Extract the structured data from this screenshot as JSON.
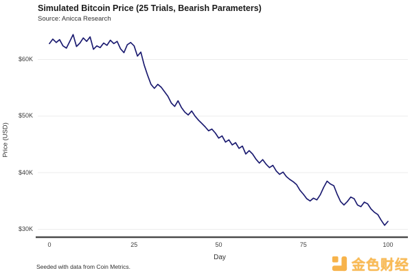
{
  "header": {
    "title": "Simulated Bitcoin Price (25 Trials, Bearish Parameters)",
    "source": "Source: Anicca Research"
  },
  "footer": {
    "note": "Seeded with data from Coin Metrics.",
    "watermark": "金色财经"
  },
  "chart_data": {
    "type": "line",
    "title": "Simulated Bitcoin Price (25 Trials, Bearish Parameters)",
    "subtitle": "Source: Anicca Research",
    "xlabel": "Day",
    "ylabel": "Price (USD)",
    "x_ticks": [
      0,
      25,
      50,
      75,
      100
    ],
    "y_ticks": [
      {
        "value": 30,
        "label": "$30K"
      },
      {
        "value": 40,
        "label": "$40K"
      },
      {
        "value": 50,
        "label": "$50K"
      },
      {
        "value": 60,
        "label": "$60K"
      }
    ],
    "xlim": [
      0,
      100
    ],
    "ylim_usd_thousands": [
      30,
      66
    ],
    "grid": "horizontal",
    "legend": "none",
    "line_color": "#1b1b70",
    "series": [
      {
        "name": "Simulated BTC price (bearish scenario)",
        "x_start_day": 0,
        "x_step_days": 1,
        "values_usd_thousands": [
          62.8,
          63.6,
          63.0,
          63.5,
          62.4,
          62.0,
          63.2,
          64.4,
          62.3,
          62.9,
          63.8,
          63.2,
          64.0,
          61.8,
          62.4,
          62.1,
          62.9,
          62.5,
          63.4,
          62.8,
          63.2,
          61.9,
          61.2,
          62.6,
          63.0,
          62.4,
          60.6,
          61.3,
          59.0,
          57.2,
          55.6,
          54.9,
          55.6,
          55.1,
          54.3,
          53.5,
          52.3,
          51.7,
          52.7,
          51.5,
          50.7,
          50.2,
          50.9,
          50.0,
          49.3,
          48.7,
          48.1,
          47.4,
          47.7,
          47.0,
          46.1,
          46.5,
          45.4,
          45.8,
          44.9,
          45.3,
          44.3,
          44.7,
          43.3,
          43.9,
          43.3,
          42.4,
          41.7,
          42.3,
          41.5,
          40.9,
          41.3,
          40.3,
          39.7,
          40.1,
          39.3,
          38.8,
          38.4,
          37.9,
          36.9,
          36.2,
          35.4,
          35.0,
          35.5,
          35.2,
          36.1,
          37.4,
          38.5,
          38.0,
          37.7,
          36.2,
          34.9,
          34.3,
          34.9,
          35.7,
          35.4,
          34.3,
          34.0,
          34.8,
          34.5,
          33.6,
          33.0,
          32.6,
          31.6,
          30.7,
          31.4
        ]
      }
    ]
  }
}
